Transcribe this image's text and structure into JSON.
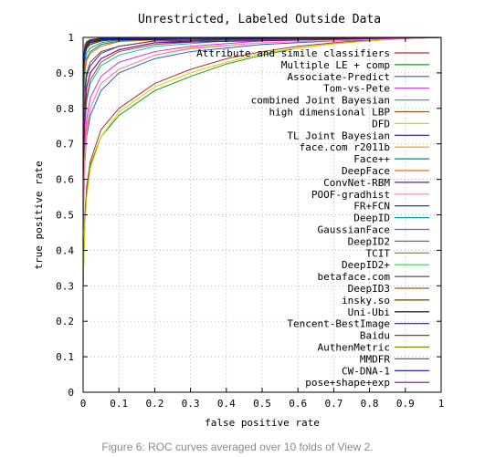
{
  "caption": "Figure 6: ROC curves averaged over 10 folds of View 2.",
  "chart_data": {
    "type": "line",
    "title": "Unrestricted, Labeled Outside Data",
    "xlabel": "false positive rate",
    "ylabel": "true positive rate",
    "xlim": [
      0,
      1
    ],
    "ylim": [
      0,
      1
    ],
    "xticks": [
      "0",
      "0.1",
      "0.2",
      "0.3",
      "0.4",
      "0.5",
      "0.6",
      "0.7",
      "0.8",
      "0.9",
      "1"
    ],
    "yticks": [
      "0",
      "0.1",
      "0.2",
      "0.3",
      "0.4",
      "0.5",
      "0.6",
      "0.7",
      "0.8",
      "0.9",
      "1"
    ],
    "grid": true,
    "legend_position": "top-right",
    "series": [
      {
        "name": "Attribute and simile classifiers",
        "color": "#b03030",
        "points": [
          [
            0,
            0.3
          ],
          [
            0.005,
            0.5
          ],
          [
            0.01,
            0.58
          ],
          [
            0.02,
            0.65
          ],
          [
            0.05,
            0.74
          ],
          [
            0.1,
            0.8
          ],
          [
            0.2,
            0.87
          ],
          [
            0.3,
            0.91
          ],
          [
            0.4,
            0.94
          ],
          [
            0.5,
            0.96
          ],
          [
            0.6,
            0.975
          ],
          [
            0.7,
            0.985
          ],
          [
            0.8,
            0.993
          ],
          [
            0.9,
            0.998
          ],
          [
            1,
            1
          ]
        ]
      },
      {
        "name": "Multiple LE + comp",
        "color": "#1a9a1a",
        "points": [
          [
            0,
            0.3
          ],
          [
            0.005,
            0.48
          ],
          [
            0.01,
            0.56
          ],
          [
            0.02,
            0.64
          ],
          [
            0.05,
            0.72
          ],
          [
            0.1,
            0.78
          ],
          [
            0.2,
            0.85
          ],
          [
            0.3,
            0.89
          ],
          [
            0.4,
            0.925
          ],
          [
            0.5,
            0.95
          ],
          [
            0.6,
            0.97
          ],
          [
            0.7,
            0.982
          ],
          [
            0.8,
            0.99
          ],
          [
            0.9,
            0.997
          ],
          [
            1,
            1
          ]
        ]
      },
      {
        "name": "Associate-Predict",
        "color": "#2060c0",
        "points": [
          [
            0,
            0.45
          ],
          [
            0.005,
            0.65
          ],
          [
            0.01,
            0.72
          ],
          [
            0.02,
            0.78
          ],
          [
            0.05,
            0.85
          ],
          [
            0.1,
            0.9
          ],
          [
            0.2,
            0.94
          ],
          [
            0.3,
            0.96
          ],
          [
            0.5,
            0.98
          ],
          [
            0.7,
            0.99
          ],
          [
            1,
            1
          ]
        ]
      },
      {
        "name": "Tom-vs-Pete",
        "color": "#cc33cc",
        "points": [
          [
            0,
            0.5
          ],
          [
            0.005,
            0.7
          ],
          [
            0.01,
            0.77
          ],
          [
            0.02,
            0.83
          ],
          [
            0.05,
            0.89
          ],
          [
            0.1,
            0.93
          ],
          [
            0.2,
            0.96
          ],
          [
            0.3,
            0.975
          ],
          [
            0.5,
            0.99
          ],
          [
            1,
            1
          ]
        ]
      },
      {
        "name": "combined Joint Bayesian",
        "color": "#20b0c0",
        "points": [
          [
            0,
            0.55
          ],
          [
            0.005,
            0.75
          ],
          [
            0.01,
            0.82
          ],
          [
            0.02,
            0.87
          ],
          [
            0.05,
            0.92
          ],
          [
            0.1,
            0.95
          ],
          [
            0.2,
            0.975
          ],
          [
            0.4,
            0.99
          ],
          [
            1,
            1
          ]
        ]
      },
      {
        "name": "high dimensional LBP",
        "color": "#8a5a20",
        "points": [
          [
            0,
            0.55
          ],
          [
            0.005,
            0.76
          ],
          [
            0.01,
            0.83
          ],
          [
            0.02,
            0.88
          ],
          [
            0.05,
            0.93
          ],
          [
            0.1,
            0.96
          ],
          [
            0.2,
            0.98
          ],
          [
            0.4,
            0.993
          ],
          [
            1,
            1
          ]
        ]
      },
      {
        "name": "DFD",
        "color": "#e0d000",
        "points": [
          [
            0,
            0.3
          ],
          [
            0.005,
            0.47
          ],
          [
            0.01,
            0.55
          ],
          [
            0.02,
            0.63
          ],
          [
            0.05,
            0.72
          ],
          [
            0.1,
            0.79
          ],
          [
            0.2,
            0.86
          ],
          [
            0.3,
            0.9
          ],
          [
            0.4,
            0.93
          ],
          [
            0.5,
            0.955
          ],
          [
            0.6,
            0.97
          ],
          [
            0.7,
            0.982
          ],
          [
            0.8,
            0.99
          ],
          [
            0.9,
            0.997
          ],
          [
            1,
            1
          ]
        ]
      },
      {
        "name": "TL Joint Bayesian",
        "color": "#1a1a90",
        "points": [
          [
            0,
            0.6
          ],
          [
            0.005,
            0.8
          ],
          [
            0.01,
            0.86
          ],
          [
            0.02,
            0.9
          ],
          [
            0.05,
            0.94
          ],
          [
            0.1,
            0.965
          ],
          [
            0.2,
            0.985
          ],
          [
            0.4,
            0.995
          ],
          [
            1,
            1
          ]
        ]
      },
      {
        "name": "face.com r2011b",
        "color": "#e0a000",
        "points": [
          [
            0,
            0.5
          ],
          [
            0.005,
            0.68
          ],
          [
            0.01,
            0.75
          ],
          [
            0.02,
            0.8
          ],
          [
            0.05,
            0.87
          ],
          [
            0.1,
            0.91
          ],
          [
            0.2,
            0.95
          ],
          [
            0.3,
            0.97
          ],
          [
            0.5,
            0.985
          ],
          [
            1,
            1
          ]
        ]
      },
      {
        "name": "Face++",
        "color": "#108070",
        "points": [
          [
            0,
            0.75
          ],
          [
            0.005,
            0.9
          ],
          [
            0.01,
            0.94
          ],
          [
            0.02,
            0.96
          ],
          [
            0.05,
            0.98
          ],
          [
            0.1,
            0.99
          ],
          [
            0.3,
            0.998
          ],
          [
            1,
            1
          ]
        ]
      },
      {
        "name": "DeepFace",
        "color": "#f07000",
        "points": [
          [
            0,
            0.75
          ],
          [
            0.005,
            0.9
          ],
          [
            0.01,
            0.935
          ],
          [
            0.02,
            0.955
          ],
          [
            0.05,
            0.975
          ],
          [
            0.1,
            0.988
          ],
          [
            0.3,
            0.997
          ],
          [
            1,
            1
          ]
        ]
      },
      {
        "name": "ConvNet-RBM",
        "color": "#602080",
        "points": [
          [
            0,
            0.65
          ],
          [
            0.005,
            0.84
          ],
          [
            0.01,
            0.89
          ],
          [
            0.02,
            0.92
          ],
          [
            0.05,
            0.955
          ],
          [
            0.1,
            0.975
          ],
          [
            0.2,
            0.99
          ],
          [
            1,
            1
          ]
        ]
      },
      {
        "name": "POOF-gradhist",
        "color": "#ff80c0",
        "points": [
          [
            0,
            0.45
          ],
          [
            0.005,
            0.66
          ],
          [
            0.01,
            0.73
          ],
          [
            0.02,
            0.8
          ],
          [
            0.05,
            0.87
          ],
          [
            0.1,
            0.91
          ],
          [
            0.2,
            0.95
          ],
          [
            0.3,
            0.968
          ],
          [
            0.5,
            0.985
          ],
          [
            1,
            1
          ]
        ]
      },
      {
        "name": "FR+FCN",
        "color": "#003090",
        "points": [
          [
            0,
            0.85
          ],
          [
            0.005,
            0.95
          ],
          [
            0.01,
            0.97
          ],
          [
            0.02,
            0.98
          ],
          [
            0.05,
            0.99
          ],
          [
            0.1,
            0.995
          ],
          [
            1,
            1
          ]
        ]
      },
      {
        "name": "DeepID",
        "color": "#00a0a0",
        "points": [
          [
            0,
            0.8
          ],
          [
            0.005,
            0.93
          ],
          [
            0.01,
            0.955
          ],
          [
            0.02,
            0.97
          ],
          [
            0.05,
            0.985
          ],
          [
            0.1,
            0.993
          ],
          [
            1,
            1
          ]
        ]
      },
      {
        "name": "GaussianFace",
        "color": "#4070d0",
        "points": [
          [
            0,
            0.85
          ],
          [
            0.005,
            0.95
          ],
          [
            0.01,
            0.97
          ],
          [
            0.02,
            0.98
          ],
          [
            0.05,
            0.99
          ],
          [
            0.1,
            0.996
          ],
          [
            1,
            1
          ]
        ]
      },
      {
        "name": "DeepID2",
        "color": "#707070",
        "points": [
          [
            0,
            0.88
          ],
          [
            0.005,
            0.96
          ],
          [
            0.01,
            0.975
          ],
          [
            0.02,
            0.985
          ],
          [
            0.05,
            0.993
          ],
          [
            0.1,
            0.997
          ],
          [
            1,
            1
          ]
        ]
      },
      {
        "name": "TCIT",
        "color": "#40a020",
        "points": [
          [
            0,
            0.85
          ],
          [
            0.005,
            0.95
          ],
          [
            0.01,
            0.968
          ],
          [
            0.02,
            0.98
          ],
          [
            0.05,
            0.99
          ],
          [
            0.1,
            0.995
          ],
          [
            1,
            1
          ]
        ]
      },
      {
        "name": "DeepID2+",
        "color": "#30d050",
        "points": [
          [
            0,
            0.9
          ],
          [
            0.005,
            0.97
          ],
          [
            0.01,
            0.98
          ],
          [
            0.02,
            0.99
          ],
          [
            0.05,
            0.995
          ],
          [
            1,
            1
          ]
        ]
      },
      {
        "name": "betaface.com",
        "color": "#505050",
        "points": [
          [
            0,
            0.7
          ],
          [
            0.005,
            0.86
          ],
          [
            0.01,
            0.9
          ],
          [
            0.02,
            0.93
          ],
          [
            0.05,
            0.96
          ],
          [
            0.1,
            0.975
          ],
          [
            0.2,
            0.99
          ],
          [
            1,
            1
          ]
        ]
      },
      {
        "name": "DeepID3",
        "color": "#a06020",
        "points": [
          [
            0,
            0.9
          ],
          [
            0.005,
            0.97
          ],
          [
            0.01,
            0.982
          ],
          [
            0.02,
            0.99
          ],
          [
            0.05,
            0.996
          ],
          [
            1,
            1
          ]
        ]
      },
      {
        "name": "insky.so",
        "color": "#704000",
        "points": [
          [
            0,
            0.85
          ],
          [
            0.005,
            0.95
          ],
          [
            0.01,
            0.97
          ],
          [
            0.02,
            0.98
          ],
          [
            0.05,
            0.99
          ],
          [
            0.1,
            0.995
          ],
          [
            1,
            1
          ]
        ]
      },
      {
        "name": "Uni-Ubi",
        "color": "#000000",
        "points": [
          [
            0,
            0.88
          ],
          [
            0.005,
            0.96
          ],
          [
            0.01,
            0.975
          ],
          [
            0.02,
            0.985
          ],
          [
            0.05,
            0.993
          ],
          [
            1,
            1
          ]
        ]
      },
      {
        "name": "Tencent-BestImage",
        "color": "#202080",
        "points": [
          [
            0,
            0.92
          ],
          [
            0.005,
            0.975
          ],
          [
            0.01,
            0.985
          ],
          [
            0.02,
            0.992
          ],
          [
            0.05,
            0.997
          ],
          [
            1,
            1
          ]
        ]
      },
      {
        "name": "Baidu",
        "color": "#904000",
        "points": [
          [
            0,
            0.93
          ],
          [
            0.005,
            0.98
          ],
          [
            0.01,
            0.988
          ],
          [
            0.02,
            0.994
          ],
          [
            0.05,
            0.998
          ],
          [
            1,
            1
          ]
        ]
      },
      {
        "name": "AuthenMetric",
        "color": "#808000",
        "points": [
          [
            0,
            0.9
          ],
          [
            0.005,
            0.97
          ],
          [
            0.01,
            0.982
          ],
          [
            0.02,
            0.99
          ],
          [
            0.05,
            0.996
          ],
          [
            1,
            1
          ]
        ]
      },
      {
        "name": "MMDFR",
        "color": "#806030",
        "points": [
          [
            0,
            0.88
          ],
          [
            0.005,
            0.965
          ],
          [
            0.01,
            0.978
          ],
          [
            0.02,
            0.988
          ],
          [
            0.05,
            0.995
          ],
          [
            1,
            1
          ]
        ]
      },
      {
        "name": "CW-DNA-1",
        "color": "#1010c0",
        "points": [
          [
            0,
            0.9
          ],
          [
            0.005,
            0.97
          ],
          [
            0.01,
            0.98
          ],
          [
            0.02,
            0.99
          ],
          [
            0.05,
            0.996
          ],
          [
            1,
            1
          ]
        ]
      },
      {
        "name": "pose+shape+exp",
        "color": "#900090",
        "points": [
          [
            0,
            0.6
          ],
          [
            0.005,
            0.8
          ],
          [
            0.01,
            0.86
          ],
          [
            0.02,
            0.9
          ],
          [
            0.05,
            0.94
          ],
          [
            0.1,
            0.965
          ],
          [
            0.2,
            0.985
          ],
          [
            1,
            1
          ]
        ]
      }
    ]
  }
}
